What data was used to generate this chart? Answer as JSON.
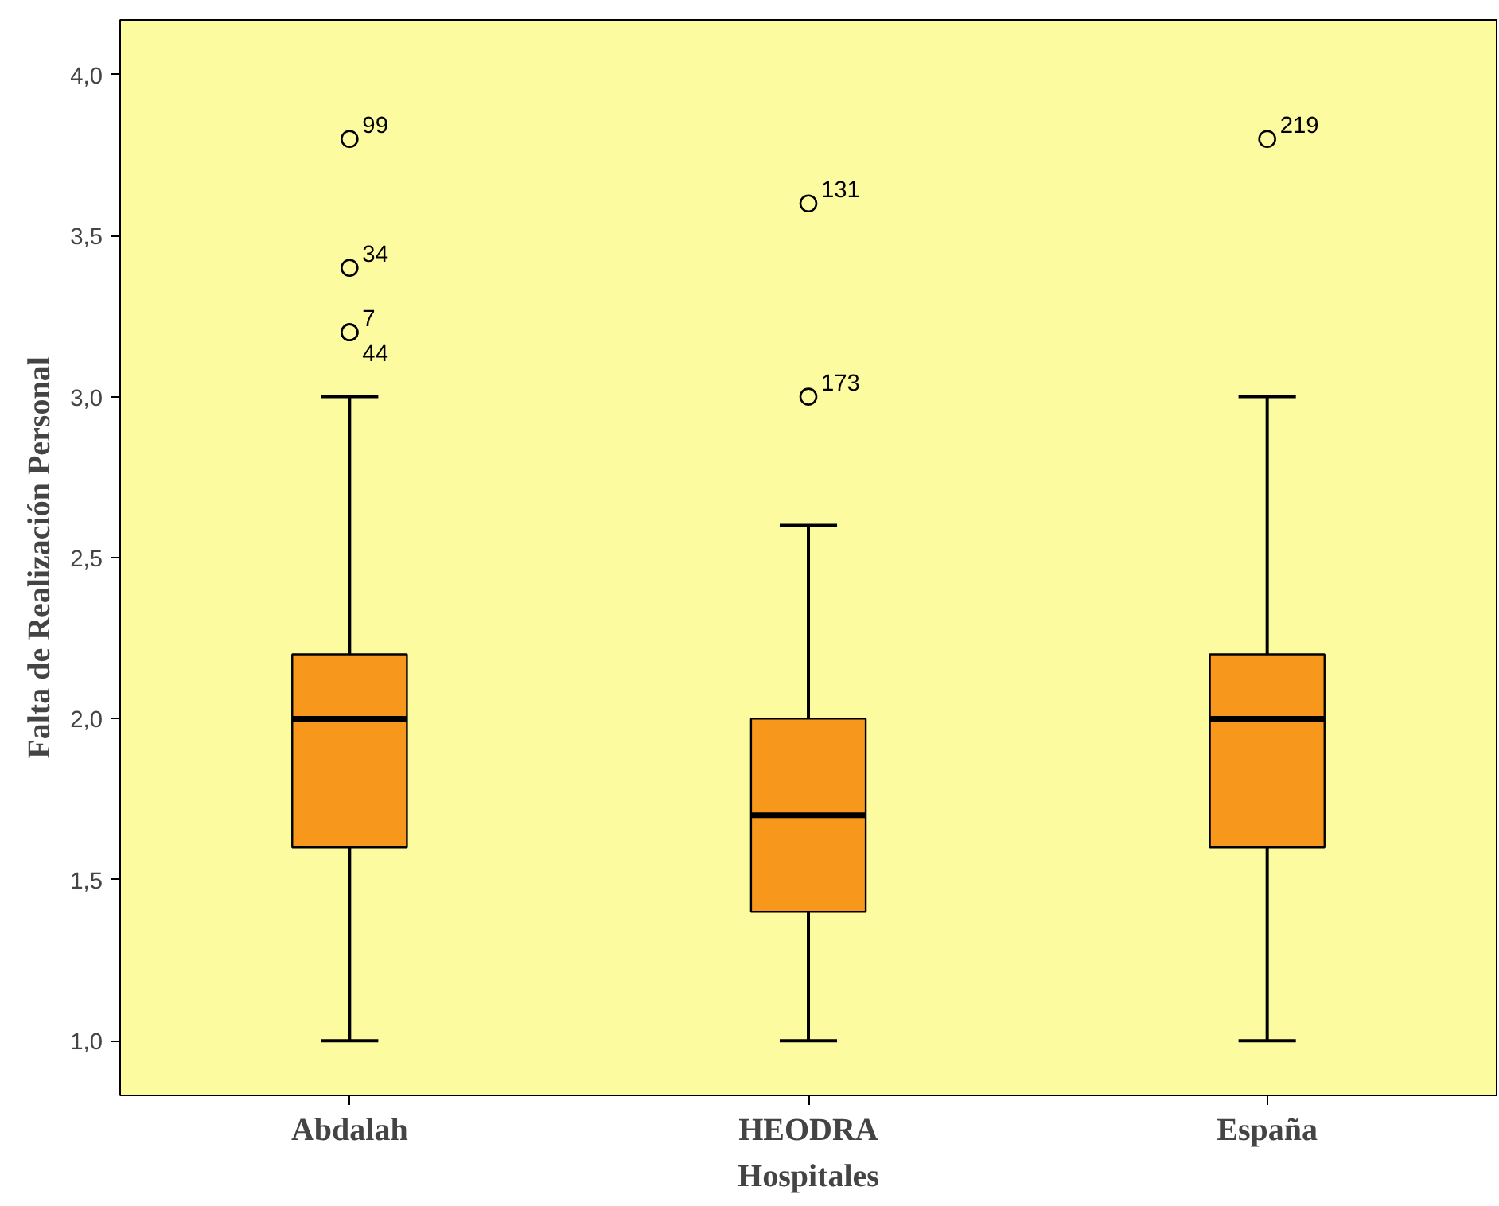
{
  "chart_data": {
    "type": "box",
    "xlabel": "Hospitales",
    "ylabel": "Falta de Realización Personal",
    "categories": [
      "Abdalah",
      "HEODRA",
      "España"
    ],
    "series": [
      {
        "color": "#f7981d",
        "boxes": [
          {
            "low": 1.0,
            "q1": 1.6,
            "median": 2.0,
            "q3": 2.2,
            "high": 3.0,
            "outliers": [
              3.8,
              3.4,
              3.2,
              3.2
            ]
          },
          {
            "low": 1.0,
            "q1": 1.4,
            "median": 1.7,
            "q3": 2.0,
            "high": 2.6,
            "outliers": [
              3.6,
              3.0
            ]
          },
          {
            "low": 1.0,
            "q1": 1.6,
            "median": 2.0,
            "q3": 2.2,
            "high": 3.0,
            "outliers": [
              3.8
            ]
          }
        ]
      }
    ],
    "ylim": [
      0.83,
      4.17
    ],
    "yticks": [
      {
        "value": 1.0,
        "label": "1,0"
      },
      {
        "value": 1.5,
        "label": "1,5"
      },
      {
        "value": 2.0,
        "label": "2,0"
      },
      {
        "value": 2.5,
        "label": "2,5"
      },
      {
        "value": 3.0,
        "label": "3,0"
      },
      {
        "value": 3.5,
        "label": "3,5"
      },
      {
        "value": 4.0,
        "label": "4,0"
      }
    ],
    "grid": false,
    "marker": "circle",
    "annotations": [
      "99",
      "34",
      "7",
      "44",
      "131",
      "173",
      "219"
    ]
  }
}
